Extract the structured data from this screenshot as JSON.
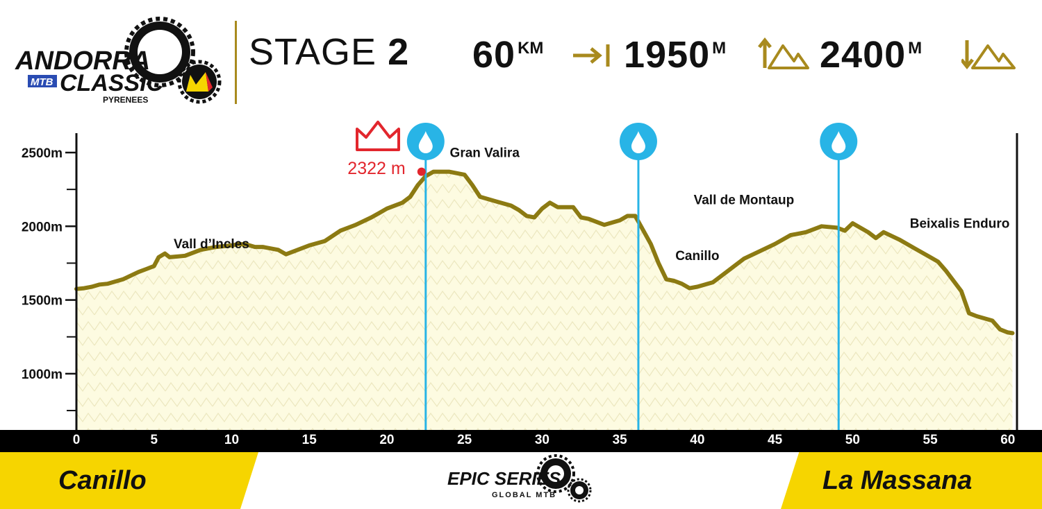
{
  "brand": {
    "name_line1": "ANDORRA",
    "name_mtb": "MTB",
    "name_line2": "CLASSIC",
    "region": "PYRENEES"
  },
  "header": {
    "stage_label": "STAGE",
    "stage_number": "2",
    "distance": {
      "value": "60",
      "unit": "KM"
    },
    "climb": {
      "value": "1950",
      "unit": "M"
    },
    "descent": {
      "value": "2400",
      "unit": "M"
    }
  },
  "colors": {
    "profile_line": "#8c7a12",
    "profile_fill": "#fdfbe1",
    "water": "#28b4e6",
    "summit": "#e2262d",
    "footer_yellow": "#f6d500",
    "gold": "#a88a1e"
  },
  "icons": [
    "gear-icon",
    "distance-arrow-icon",
    "climb-mountain-icon",
    "descent-mountain-icon",
    "water-drop-icon",
    "crown-icon"
  ],
  "chart_data": {
    "type": "area",
    "xlabel": "",
    "ylabel": "",
    "xlim": [
      0,
      60.5
    ],
    "ylim": [
      600,
      2600
    ],
    "x_ticks": [
      0,
      5,
      10,
      15,
      20,
      25,
      30,
      35,
      40,
      45,
      50,
      55,
      60
    ],
    "y_ticks": [
      {
        "value": 2500,
        "label": "2500m"
      },
      {
        "value": 2000,
        "label": "2000m"
      },
      {
        "value": 1500,
        "label": "1500m"
      },
      {
        "value": 1000,
        "label": "1000m"
      }
    ],
    "y_minor_ticks": [
      2250,
      1750,
      1250,
      750
    ],
    "grid": false,
    "series": [
      {
        "x": [
          0,
          0.5,
          1,
          1.5,
          2,
          3,
          4,
          4.5,
          5,
          5.3,
          5.7,
          6,
          7,
          8,
          9,
          10,
          10.5,
          11,
          11.5,
          12,
          13,
          13.5,
          14,
          15,
          16,
          17,
          18,
          19,
          19.5,
          20,
          21,
          21.5,
          22,
          22.5,
          23,
          24,
          25,
          25.5,
          26,
          27,
          28,
          28.5,
          29,
          29.5,
          30,
          30.5,
          31,
          32,
          32.5,
          33,
          34,
          35,
          35.5,
          36,
          37,
          37.5,
          38,
          38.5,
          39,
          39.5,
          40,
          41,
          42,
          43,
          44,
          45,
          46,
          47,
          48,
          49,
          49.5,
          50,
          51,
          51.5,
          52,
          53,
          54,
          55,
          55.5,
          56,
          57,
          57.5,
          58,
          59,
          59.5,
          60,
          60.3
        ],
        "y": [
          1575,
          1580,
          1590,
          1605,
          1610,
          1640,
          1690,
          1710,
          1730,
          1790,
          1815,
          1790,
          1800,
          1840,
          1860,
          1870,
          1880,
          1875,
          1860,
          1860,
          1840,
          1810,
          1830,
          1870,
          1900,
          1970,
          2010,
          2060,
          2090,
          2120,
          2160,
          2200,
          2280,
          2340,
          2370,
          2370,
          2350,
          2280,
          2200,
          2170,
          2140,
          2110,
          2070,
          2060,
          2120,
          2160,
          2130,
          2130,
          2060,
          2050,
          2010,
          2040,
          2070,
          2070,
          1880,
          1750,
          1640,
          1630,
          1610,
          1580,
          1590,
          1620,
          1700,
          1780,
          1830,
          1880,
          1940,
          1960,
          2000,
          1990,
          1970,
          2020,
          1960,
          1920,
          1960,
          1910,
          1850,
          1790,
          1760,
          1700,
          1560,
          1410,
          1390,
          1360,
          1300,
          1280,
          1275
        ]
      }
    ],
    "annotations": [
      {
        "type": "summit",
        "x": 22.5,
        "y": 2370,
        "label": "2322 m"
      },
      {
        "type": "water",
        "x": 22.5
      },
      {
        "type": "water",
        "x": 36.2
      },
      {
        "type": "water",
        "x": 49.1
      }
    ],
    "segment_labels": [
      {
        "x": 8.7,
        "y": 1850,
        "text": "Vall d’Incles"
      },
      {
        "x": 26.3,
        "y": 2470,
        "text": "Gran Valira"
      },
      {
        "x": 40,
        "y": 1770,
        "text": "Canillo"
      },
      {
        "x": 43,
        "y": 2150,
        "text": "Vall de Montaup"
      },
      {
        "x": 56.9,
        "y": 1990,
        "text": "Beixalis Enduro"
      }
    ]
  },
  "footer": {
    "start": "Canillo",
    "finish": "La Massana",
    "series_line1": "EPIC SERIES",
    "series_line2": "GLOBAL MTB"
  }
}
